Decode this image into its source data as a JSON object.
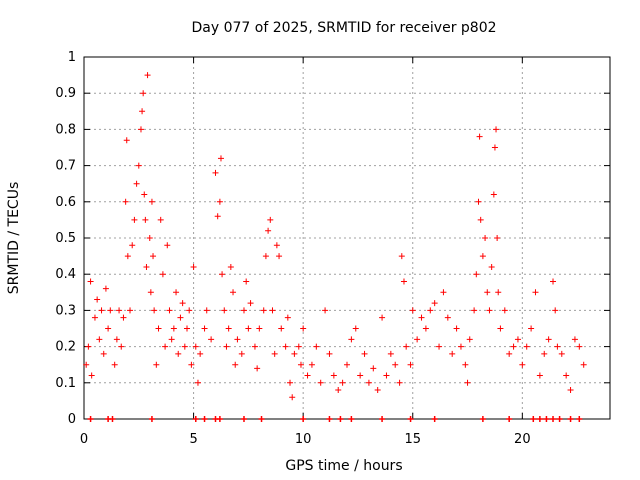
{
  "chart_data": {
    "type": "scatter",
    "title": "Day 077 of 2025, SRMTID for receiver p802",
    "xlabel": "GPS time / hours",
    "ylabel": "SRMTID / TECUs",
    "xlim": [
      0,
      24
    ],
    "ylim": [
      0,
      1
    ],
    "grid": true,
    "marker": "+",
    "series_color": "#ff0000",
    "xticks": [
      0,
      5,
      10,
      15,
      20
    ],
    "xtick_labels": [
      "0",
      "5",
      "10",
      "15",
      "20"
    ],
    "yticks": [
      0,
      0.1,
      0.2,
      0.3,
      0.4,
      0.5,
      0.6,
      0.7,
      0.8,
      0.9,
      1
    ],
    "ytick_labels": [
      "0",
      "0.1",
      "0.2",
      "0.3",
      "0.4",
      "0.5",
      "0.6",
      "0.7",
      "0.8",
      "0.9",
      "1"
    ],
    "zero_valued_times": [
      0.3,
      1.1,
      1.3,
      3.1,
      5.1,
      5.5,
      6.0,
      6.2,
      7.3,
      8.1,
      10.0,
      11.2,
      11.7,
      12.2,
      13.6,
      14.9,
      16.0,
      18.2,
      19.4,
      20.5,
      20.8,
      21.1,
      21.4,
      21.7,
      22.2,
      22.6
    ],
    "series": [
      {
        "name": "SRMTID",
        "points": [
          [
            0.1,
            0.15
          ],
          [
            0.2,
            0.2
          ],
          [
            0.3,
            0.38
          ],
          [
            0.35,
            0.12
          ],
          [
            0.5,
            0.28
          ],
          [
            0.6,
            0.33
          ],
          [
            0.7,
            0.22
          ],
          [
            0.8,
            0.3
          ],
          [
            0.9,
            0.18
          ],
          [
            1.0,
            0.36
          ],
          [
            1.1,
            0.25
          ],
          [
            1.2,
            0.3
          ],
          [
            1.4,
            0.15
          ],
          [
            1.5,
            0.22
          ],
          [
            1.6,
            0.3
          ],
          [
            1.7,
            0.2
          ],
          [
            1.8,
            0.28
          ],
          [
            1.9,
            0.6
          ],
          [
            1.95,
            0.77
          ],
          [
            2.0,
            0.45
          ],
          [
            2.1,
            0.3
          ],
          [
            2.2,
            0.48
          ],
          [
            2.3,
            0.55
          ],
          [
            2.4,
            0.65
          ],
          [
            2.5,
            0.7
          ],
          [
            2.6,
            0.8
          ],
          [
            2.65,
            0.85
          ],
          [
            2.7,
            0.9
          ],
          [
            2.75,
            0.62
          ],
          [
            2.8,
            0.55
          ],
          [
            2.85,
            0.42
          ],
          [
            2.9,
            0.95
          ],
          [
            3.0,
            0.5
          ],
          [
            3.05,
            0.35
          ],
          [
            3.1,
            0.6
          ],
          [
            3.15,
            0.45
          ],
          [
            3.2,
            0.3
          ],
          [
            3.3,
            0.15
          ],
          [
            3.4,
            0.25
          ],
          [
            3.5,
            0.55
          ],
          [
            3.6,
            0.4
          ],
          [
            3.7,
            0.2
          ],
          [
            3.8,
            0.48
          ],
          [
            3.9,
            0.3
          ],
          [
            4.0,
            0.22
          ],
          [
            4.1,
            0.25
          ],
          [
            4.2,
            0.35
          ],
          [
            4.3,
            0.18
          ],
          [
            4.4,
            0.28
          ],
          [
            4.5,
            0.32
          ],
          [
            4.6,
            0.2
          ],
          [
            4.7,
            0.25
          ],
          [
            4.8,
            0.3
          ],
          [
            4.9,
            0.15
          ],
          [
            5.0,
            0.42
          ],
          [
            5.1,
            0.2
          ],
          [
            5.2,
            0.1
          ],
          [
            5.3,
            0.18
          ],
          [
            5.5,
            0.25
          ],
          [
            5.6,
            0.3
          ],
          [
            5.8,
            0.22
          ],
          [
            6.0,
            0.68
          ],
          [
            6.1,
            0.56
          ],
          [
            6.2,
            0.6
          ],
          [
            6.25,
            0.72
          ],
          [
            6.3,
            0.4
          ],
          [
            6.4,
            0.3
          ],
          [
            6.5,
            0.2
          ],
          [
            6.6,
            0.25
          ],
          [
            6.7,
            0.42
          ],
          [
            6.8,
            0.35
          ],
          [
            6.9,
            0.15
          ],
          [
            7.0,
            0.22
          ],
          [
            7.2,
            0.18
          ],
          [
            7.3,
            0.3
          ],
          [
            7.4,
            0.38
          ],
          [
            7.5,
            0.25
          ],
          [
            7.6,
            0.32
          ],
          [
            7.8,
            0.2
          ],
          [
            7.9,
            0.14
          ],
          [
            8.0,
            0.25
          ],
          [
            8.2,
            0.3
          ],
          [
            8.3,
            0.45
          ],
          [
            8.4,
            0.52
          ],
          [
            8.5,
            0.55
          ],
          [
            8.6,
            0.3
          ],
          [
            8.7,
            0.18
          ],
          [
            8.8,
            0.48
          ],
          [
            8.9,
            0.45
          ],
          [
            9.0,
            0.25
          ],
          [
            9.2,
            0.2
          ],
          [
            9.3,
            0.28
          ],
          [
            9.4,
            0.1
          ],
          [
            9.5,
            0.06
          ],
          [
            9.6,
            0.18
          ],
          [
            9.8,
            0.2
          ],
          [
            9.9,
            0.15
          ],
          [
            10.0,
            0.25
          ],
          [
            10.2,
            0.12
          ],
          [
            10.4,
            0.15
          ],
          [
            10.6,
            0.2
          ],
          [
            10.8,
            0.1
          ],
          [
            11.0,
            0.3
          ],
          [
            11.2,
            0.18
          ],
          [
            11.4,
            0.12
          ],
          [
            11.6,
            0.08
          ],
          [
            11.8,
            0.1
          ],
          [
            12.0,
            0.15
          ],
          [
            12.2,
            0.22
          ],
          [
            12.4,
            0.25
          ],
          [
            12.6,
            0.12
          ],
          [
            12.8,
            0.18
          ],
          [
            13.0,
            0.1
          ],
          [
            13.2,
            0.14
          ],
          [
            13.4,
            0.08
          ],
          [
            13.6,
            0.28
          ],
          [
            13.8,
            0.12
          ],
          [
            14.0,
            0.18
          ],
          [
            14.2,
            0.15
          ],
          [
            14.4,
            0.1
          ],
          [
            14.5,
            0.45
          ],
          [
            14.6,
            0.38
          ],
          [
            14.7,
            0.2
          ],
          [
            14.9,
            0.15
          ],
          [
            15.0,
            0.3
          ],
          [
            15.2,
            0.22
          ],
          [
            15.4,
            0.28
          ],
          [
            15.6,
            0.25
          ],
          [
            15.8,
            0.3
          ],
          [
            16.0,
            0.32
          ],
          [
            16.2,
            0.2
          ],
          [
            16.4,
            0.35
          ],
          [
            16.6,
            0.28
          ],
          [
            16.8,
            0.18
          ],
          [
            17.0,
            0.25
          ],
          [
            17.2,
            0.2
          ],
          [
            17.4,
            0.15
          ],
          [
            17.5,
            0.1
          ],
          [
            17.6,
            0.22
          ],
          [
            17.8,
            0.3
          ],
          [
            17.9,
            0.4
          ],
          [
            18.0,
            0.6
          ],
          [
            18.05,
            0.78
          ],
          [
            18.1,
            0.55
          ],
          [
            18.2,
            0.45
          ],
          [
            18.3,
            0.5
          ],
          [
            18.4,
            0.35
          ],
          [
            18.5,
            0.3
          ],
          [
            18.6,
            0.42
          ],
          [
            18.7,
            0.62
          ],
          [
            18.75,
            0.75
          ],
          [
            18.8,
            0.8
          ],
          [
            18.85,
            0.5
          ],
          [
            18.9,
            0.35
          ],
          [
            19.0,
            0.25
          ],
          [
            19.2,
            0.3
          ],
          [
            19.4,
            0.18
          ],
          [
            19.6,
            0.2
          ],
          [
            19.8,
            0.22
          ],
          [
            20.0,
            0.15
          ],
          [
            20.2,
            0.2
          ],
          [
            20.4,
            0.25
          ],
          [
            20.6,
            0.35
          ],
          [
            20.8,
            0.12
          ],
          [
            21.0,
            0.18
          ],
          [
            21.2,
            0.22
          ],
          [
            21.4,
            0.38
          ],
          [
            21.5,
            0.3
          ],
          [
            21.6,
            0.2
          ],
          [
            21.8,
            0.18
          ],
          [
            22.0,
            0.12
          ],
          [
            22.2,
            0.08
          ],
          [
            22.4,
            0.22
          ],
          [
            22.6,
            0.2
          ],
          [
            22.8,
            0.15
          ]
        ]
      }
    ]
  }
}
